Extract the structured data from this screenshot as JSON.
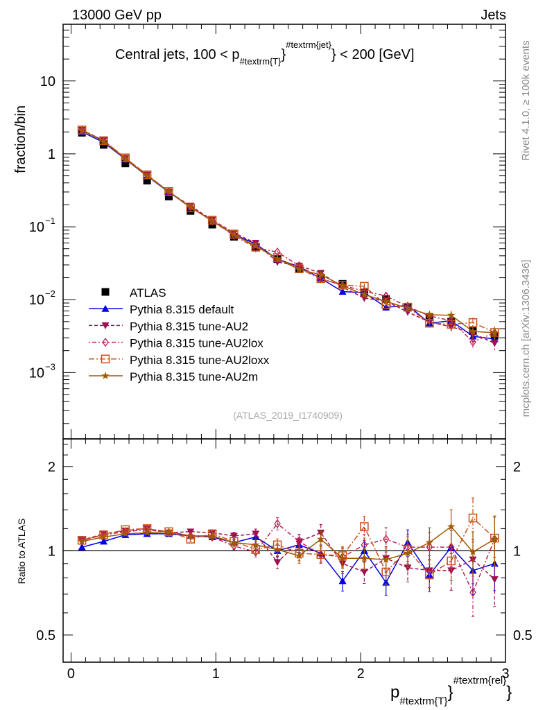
{
  "header": {
    "left": "13000 GeV pp",
    "right": "Jets"
  },
  "side": {
    "rivet": "Rivet 4.1.0, ≥ 100k events",
    "mcplots": "mcplots.cern.ch [arXiv:1306.3436]"
  },
  "chart_data": {
    "type": "line",
    "title": {
      "main": "Central jets, 100 < p",
      "sub": "#textrm{T}",
      "sup": "#textrm{jet}",
      "tail": "} < 200 [GeV]"
    },
    "analysis_tag": "(ATLAS_2019_I1740909)",
    "ylabel": "fraction/bin",
    "ratio_ylabel": "Ratio to ATLAS",
    "xlabel": {
      "main": "p",
      "sub": "#textrm{T}",
      "sup": "#textrm{rel}"
    },
    "xlim": [
      -0.055,
      3.0
    ],
    "ylim": [
      0.000123,
      60
    ],
    "yscale": "log",
    "ratio_ylim": [
      0.4,
      2.51
    ],
    "ratio_yscale": "log",
    "x_ticks": [
      "0",
      "1",
      "2",
      "3"
    ],
    "y_ticks": [
      {
        "v": 10,
        "label": "10"
      },
      {
        "v": 1,
        "label": "1"
      },
      {
        "v": 0.1,
        "label": "10",
        "exp": "−1"
      },
      {
        "v": 0.01,
        "label": "10",
        "exp": "−2"
      },
      {
        "v": 0.001,
        "label": "10",
        "exp": "−3"
      }
    ],
    "ratio_ticks": [
      {
        "v": 2,
        "label": "2"
      },
      {
        "v": 1,
        "label": "1"
      },
      {
        "v": 0.5,
        "label": "0.5"
      }
    ],
    "x": [
      0.075,
      0.225,
      0.375,
      0.525,
      0.675,
      0.825,
      0.975,
      1.125,
      1.275,
      1.425,
      1.575,
      1.725,
      1.875,
      2.025,
      2.175,
      2.325,
      2.475,
      2.625,
      2.775,
      2.925
    ],
    "data": {
      "name": "ATLAS",
      "color": "#000000",
      "values": [
        1.95,
        1.33,
        0.74,
        0.43,
        0.26,
        0.165,
        0.107,
        0.073,
        0.052,
        0.036,
        0.027,
        0.02,
        0.0165,
        0.0125,
        0.0102,
        0.0078,
        0.0058,
        0.005,
        0.0037,
        0.0032
      ]
    },
    "mc_rel_err": [
      0.01,
      0.01,
      0.012,
      0.014,
      0.016,
      0.02,
      0.025,
      0.03,
      0.04,
      0.05,
      0.06,
      0.07,
      0.08,
      0.09,
      0.1,
      0.11,
      0.13,
      0.15,
      0.18,
      0.2
    ],
    "series": [
      {
        "name": "Pythia 8.315 default",
        "color": "#0000e6",
        "marker": "triangle-up",
        "dash": "",
        "ratio": [
          1.03,
          1.08,
          1.14,
          1.15,
          1.15,
          1.13,
          1.12,
          1.07,
          1.12,
          1.0,
          1.05,
          0.98,
          0.78,
          1.0,
          0.77,
          1.07,
          0.82,
          1.03,
          0.85,
          0.9
        ]
      },
      {
        "name": "Pythia 8.315 tune-AU2",
        "color": "#9e1050",
        "marker": "triangle-down",
        "dash": "5,3",
        "ratio": [
          1.09,
          1.15,
          1.18,
          1.2,
          1.16,
          1.17,
          1.16,
          1.13,
          1.15,
          0.91,
          1.08,
          1.16,
          0.9,
          0.84,
          0.94,
          0.87,
          0.85,
          0.85,
          0.93,
          0.79
        ]
      },
      {
        "name": "Pythia 8.315 tune-AU2lox",
        "color": "#c0204f",
        "marker": "diamond-open",
        "dash": "2,3,6,3",
        "ratio": [
          1.09,
          1.14,
          1.17,
          1.19,
          1.16,
          1.13,
          1.12,
          1.04,
          0.99,
          1.25,
          1.08,
          0.97,
          0.95,
          1.05,
          1.1,
          1.03,
          1.03,
          1.03,
          0.71,
          1.1
        ]
      },
      {
        "name": "Pythia 8.315 tune-AU2loxx",
        "color": "#c8501a",
        "marker": "square-open",
        "dash": "8,3,2,3",
        "ratio": [
          1.09,
          1.14,
          1.19,
          1.2,
          1.17,
          1.1,
          1.15,
          1.08,
          1.01,
          1.05,
          0.98,
          0.97,
          0.96,
          1.22,
          0.84,
          1.01,
          0.82,
          0.92,
          1.31,
          1.11
        ]
      },
      {
        "name": "Pythia 8.315 tune-AU2m",
        "color": "#a05a00",
        "marker": "star",
        "dash": "",
        "ratio": [
          1.08,
          1.12,
          1.15,
          1.16,
          1.17,
          1.13,
          1.13,
          1.07,
          1.05,
          1.01,
          0.96,
          1.1,
          0.94,
          0.94,
          0.93,
          0.98,
          1.07,
          1.22,
          0.99,
          1.1
        ]
      }
    ],
    "legend": "top-left (lower half of main panel)"
  }
}
